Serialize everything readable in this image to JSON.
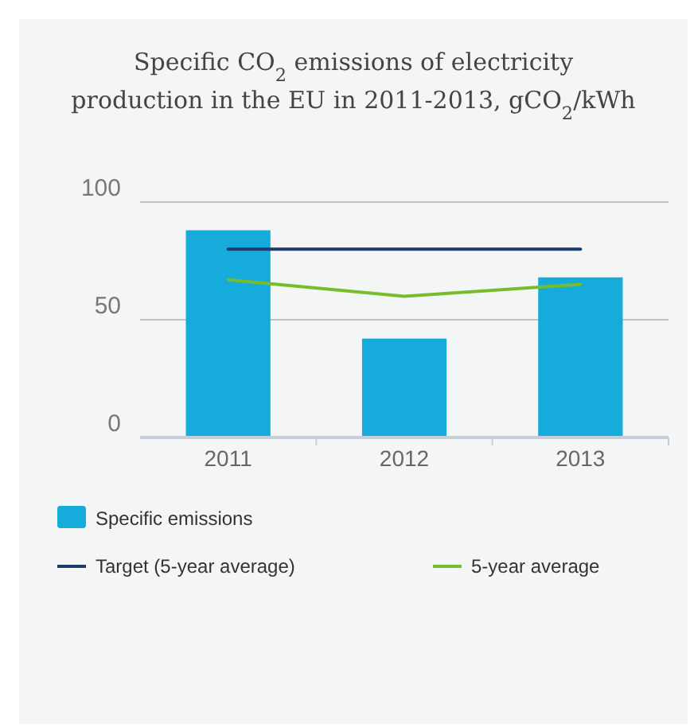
{
  "chart_data": {
    "type": "bar",
    "title": "Specific CO$_{2}$ emissions of electricity production in the EU in 2011-2013, gCO$_{2}$/kWh",
    "categories": [
      "2011",
      "2012",
      "2013"
    ],
    "series": [
      {
        "name": "Specific emissions",
        "color": "#15abdb",
        "values": [
          88,
          42,
          68
        ]
      },
      {
        "name": "Target (5-year average)",
        "type": "line",
        "color": "#1c3a6b",
        "values": [
          80,
          80,
          80
        ]
      },
      {
        "name": "5-year average",
        "type": "line",
        "color": "#77bc2a",
        "values": [
          67,
          60,
          65
        ]
      }
    ],
    "ylim": [
      0,
      100
    ],
    "yticks": [
      0,
      50,
      100
    ],
    "grid": "y",
    "legend": "bottom"
  }
}
